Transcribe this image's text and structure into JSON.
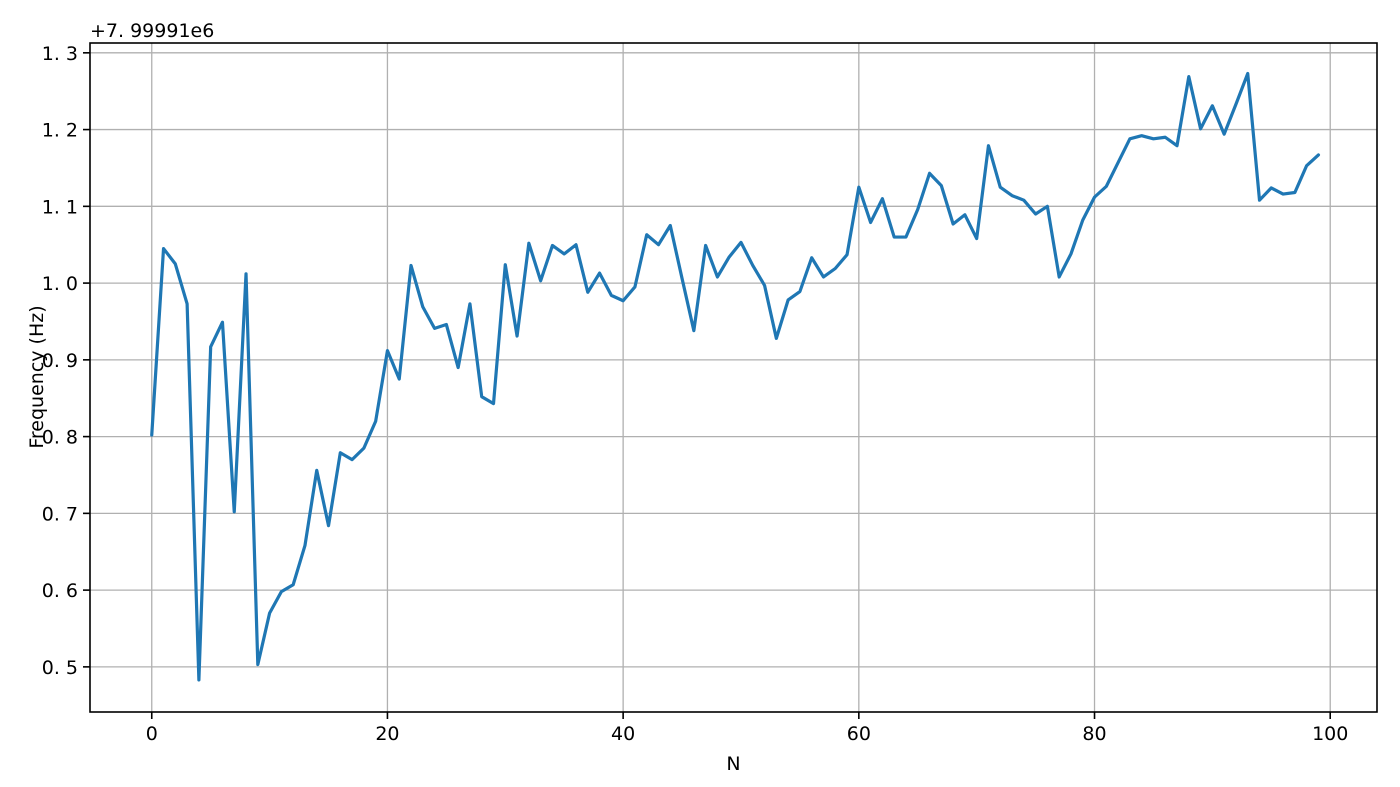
{
  "figure": {
    "background": "#ffffff"
  },
  "chart_data": {
    "type": "line",
    "title": "",
    "xlabel": "N",
    "ylabel": "Frequency (Hz)",
    "y_offset_text": "+7. 99991e6",
    "grid": true,
    "grid_color": "#b0b0b0",
    "spine_color": "#000000",
    "tick_label_color": "#000000",
    "legend": null,
    "xlim": [
      -5.24,
      103.97
    ],
    "ylim": [
      0.4412,
      1.3128
    ],
    "xticks": {
      "values": [
        0,
        20,
        40,
        60,
        80,
        100
      ],
      "labels": [
        "0",
        "20",
        "40",
        "60",
        "80",
        "100"
      ]
    },
    "yticks": {
      "values": [
        0.5,
        0.6,
        0.7,
        0.8,
        0.9,
        1.0,
        1.1,
        1.2,
        1.3
      ],
      "labels": [
        "0. 5",
        "0. 6",
        "0. 7",
        "0. 8",
        "0. 9",
        "1. 0",
        "1. 1",
        "1. 2",
        "1. 3"
      ]
    },
    "series": [
      {
        "name": "frequency",
        "color": "#1f77b4",
        "linewidth": 3.2,
        "x": [
          0,
          1,
          2,
          3,
          4,
          5,
          6,
          7,
          8,
          9,
          10,
          11,
          12,
          13,
          14,
          15,
          16,
          17,
          18,
          19,
          20,
          21,
          22,
          23,
          24,
          25,
          26,
          27,
          28,
          29,
          30,
          31,
          32,
          33,
          34,
          35,
          36,
          37,
          38,
          39,
          40,
          41,
          42,
          43,
          44,
          45,
          46,
          47,
          48,
          49,
          50,
          51,
          52,
          53,
          54,
          55,
          56,
          57,
          58,
          59,
          60,
          61,
          62,
          63,
          64,
          65,
          66,
          67,
          68,
          69,
          70,
          71,
          72,
          73,
          74,
          75,
          76,
          77,
          78,
          79,
          80,
          81,
          82,
          83,
          84,
          85,
          86,
          87,
          88,
          89,
          90,
          91,
          92,
          93,
          94,
          95,
          96,
          97,
          98,
          99
        ],
        "values": [
          0.802,
          1.045,
          1.025,
          0.973,
          0.483,
          0.917,
          0.949,
          0.702,
          1.012,
          0.503,
          0.57,
          0.598,
          0.607,
          0.658,
          0.756,
          0.684,
          0.779,
          0.77,
          0.785,
          0.82,
          0.912,
          0.875,
          1.023,
          0.969,
          0.941,
          0.946,
          0.89,
          0.973,
          0.852,
          0.843,
          1.024,
          0.931,
          1.052,
          1.003,
          1.049,
          1.038,
          1.05,
          0.988,
          1.013,
          0.984,
          0.977,
          0.995,
          1.063,
          1.05,
          1.075,
          1.006,
          0.938,
          1.049,
          1.008,
          1.034,
          1.053,
          1.023,
          0.997,
          0.928,
          0.978,
          0.989,
          1.033,
          1.008,
          1.019,
          1.037,
          1.125,
          1.079,
          1.11,
          1.06,
          1.06,
          1.096,
          1.143,
          1.127,
          1.077,
          1.089,
          1.058,
          1.179,
          1.125,
          1.114,
          1.108,
          1.09,
          1.1,
          1.008,
          1.038,
          1.082,
          1.112,
          1.126,
          1.157,
          1.188,
          1.192,
          1.188,
          1.19,
          1.179,
          1.269,
          1.201,
          1.231,
          1.194,
          1.233,
          1.273,
          1.108,
          1.124,
          1.116,
          1.118,
          1.153,
          1.167
        ]
      }
    ]
  }
}
